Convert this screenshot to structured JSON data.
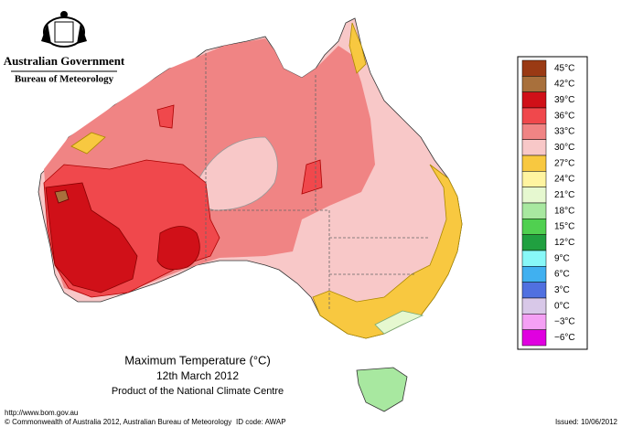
{
  "header": {
    "title": "Australian Government",
    "subtitle": "Bureau of Meteorology"
  },
  "map": {
    "title": "Maximum Temperature (°C)",
    "date": "12th March 2012",
    "product": "Product of the National Climate Centre"
  },
  "legend": [
    {
      "label": "45°C",
      "color": "#9a3a14"
    },
    {
      "label": "42°C",
      "color": "#a8703c"
    },
    {
      "label": "39°C",
      "color": "#d01018"
    },
    {
      "label": "36°C",
      "color": "#f0484c"
    },
    {
      "label": "33°C",
      "color": "#f08484"
    },
    {
      "label": "30°C",
      "color": "#f8c8c8"
    },
    {
      "label": "27°C",
      "color": "#f8c840"
    },
    {
      "label": "24°C",
      "color": "#fff4a0"
    },
    {
      "label": "21°C",
      "color": "#e6f8d0"
    },
    {
      "label": "18°C",
      "color": "#a8e8a0"
    },
    {
      "label": "15°C",
      "color": "#50d050"
    },
    {
      "label": "12°C",
      "color": "#20a040"
    },
    {
      "label": "9°C",
      "color": "#88f8f8"
    },
    {
      "label": "6°C",
      "color": "#40b0f0"
    },
    {
      "label": "3°C",
      "color": "#5070e0"
    },
    {
      "label": "0°C",
      "color": "#d8c8e8"
    },
    {
      "label": "−3°C",
      "color": "#f4a0f4"
    },
    {
      "label": "−6°C",
      "color": "#e000e0"
    }
  ],
  "footer": {
    "url": "http://www.bom.gov.au",
    "copyright": "© Commonwealth of Australia 2012, Australian Bureau of Meteorology",
    "id": "ID code: AWAP",
    "issued": "Issued: 10/06/2012"
  }
}
